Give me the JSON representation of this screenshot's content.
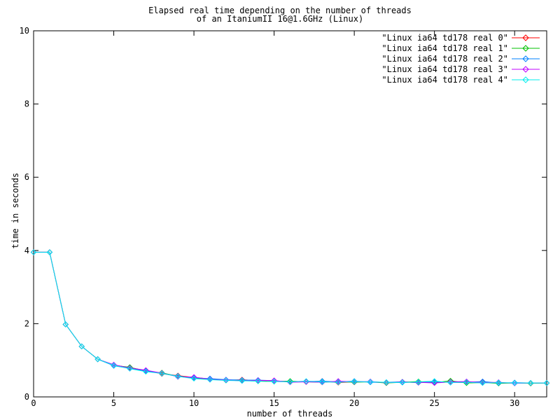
{
  "window": {
    "background": "#ffffff",
    "foreground": "#000000"
  },
  "chart_data": {
    "type": "line",
    "title": "Elapsed real time depending on the number of threads",
    "subtitle": "of an ItaniumII 16@1.6GHz (Linux)",
    "xlabel": "number of threads",
    "ylabel": "time in seconds",
    "xlim": [
      0,
      32
    ],
    "ylim": [
      0,
      10
    ],
    "xticks": [
      0,
      5,
      10,
      15,
      20,
      25,
      30
    ],
    "yticks": [
      0,
      2,
      4,
      6,
      8,
      10
    ],
    "grid": false,
    "legend": {
      "position": "top-right-inside",
      "marker": "open-diamond"
    },
    "x": [
      0,
      1,
      2,
      3,
      4,
      5,
      6,
      7,
      8,
      9,
      10,
      11,
      12,
      13,
      14,
      15,
      16,
      17,
      18,
      19,
      20,
      21,
      22,
      23,
      24,
      25,
      26,
      27,
      28,
      29,
      30,
      31,
      32
    ],
    "series": [
      {
        "name": "real-0",
        "label": "\"Linux ia64 td178 real 0\"",
        "color": "#ff0000",
        "values": [
          3.95,
          3.95,
          1.98,
          1.38,
          1.03,
          0.87,
          0.8,
          0.72,
          0.63,
          0.58,
          0.53,
          0.49,
          0.45,
          0.47,
          0.44,
          0.43,
          0.42,
          0.41,
          0.43,
          0.39,
          0.41,
          0.41,
          0.39,
          0.41,
          0.39,
          0.4,
          0.4,
          0.39,
          0.4,
          0.38,
          0.38,
          0.37,
          0.38
        ]
      },
      {
        "name": "real-1",
        "label": "\"Linux ia64 td178 real 1\"",
        "color": "#00c000",
        "values": [
          3.95,
          3.95,
          1.98,
          1.38,
          1.03,
          0.86,
          0.81,
          0.7,
          0.66,
          0.56,
          0.51,
          0.48,
          0.46,
          0.45,
          0.43,
          0.42,
          0.43,
          0.41,
          0.4,
          0.42,
          0.4,
          0.41,
          0.38,
          0.4,
          0.42,
          0.39,
          0.44,
          0.38,
          0.39,
          0.37,
          0.38,
          0.37,
          0.38
        ]
      },
      {
        "name": "real-2",
        "label": "\"Linux ia64 td178 real 2\"",
        "color": "#0080ff",
        "values": [
          3.95,
          3.95,
          1.98,
          1.38,
          1.03,
          0.85,
          0.78,
          0.71,
          0.64,
          0.57,
          0.52,
          0.5,
          0.47,
          0.46,
          0.46,
          0.44,
          0.41,
          0.42,
          0.43,
          0.41,
          0.43,
          0.4,
          0.4,
          0.41,
          0.39,
          0.41,
          0.4,
          0.4,
          0.42,
          0.38,
          0.39,
          0.38,
          0.38
        ]
      },
      {
        "name": "real-3",
        "label": "\"Linux ia64 td178 real 3\"",
        "color": "#c000ff",
        "values": [
          3.95,
          3.95,
          1.98,
          1.38,
          1.03,
          0.88,
          0.79,
          0.73,
          0.65,
          0.55,
          0.54,
          0.48,
          0.46,
          0.44,
          0.45,
          0.45,
          0.4,
          0.41,
          0.4,
          0.43,
          0.41,
          0.42,
          0.39,
          0.4,
          0.4,
          0.38,
          0.41,
          0.42,
          0.39,
          0.4,
          0.37,
          0.38,
          0.38
        ]
      },
      {
        "name": "real-4",
        "label": "\"Linux ia64 td178 real 4\"",
        "color": "#00eeee",
        "values": [
          3.95,
          3.95,
          1.98,
          1.38,
          1.03,
          0.86,
          0.77,
          0.69,
          0.64,
          0.56,
          0.5,
          0.47,
          0.45,
          0.44,
          0.43,
          0.42,
          0.41,
          0.43,
          0.41,
          0.4,
          0.42,
          0.41,
          0.4,
          0.39,
          0.41,
          0.43,
          0.39,
          0.4,
          0.38,
          0.39,
          0.38,
          0.38,
          0.38
        ]
      }
    ]
  }
}
